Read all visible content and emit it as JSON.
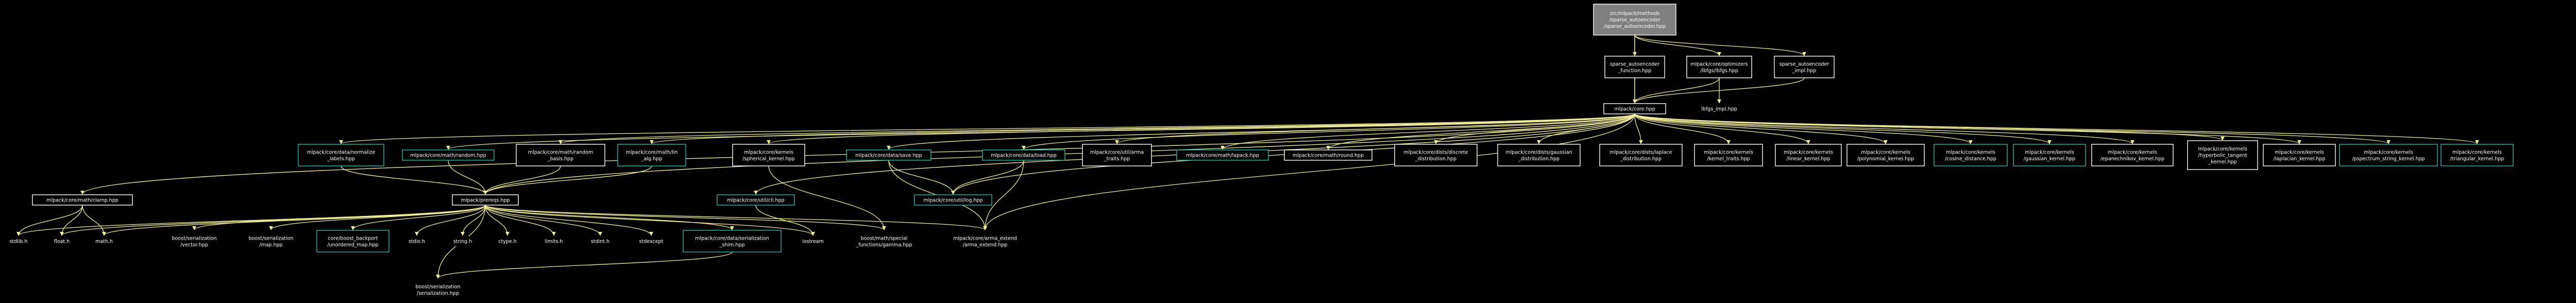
{
  "colors": {
    "background": "#000000",
    "text": "#ffffff",
    "edge": "#f3ef9e",
    "border_default": "#ffffff",
    "border_linked": "#2cb7b0",
    "root_fill": "#7f7f7f",
    "node_fill": "#000000"
  },
  "nodes": [
    {
      "id": "root",
      "lines": [
        "src/mlpack/methods",
        "/sparse_autoencoder",
        "/sparse_autoencoder.hpp"
      ],
      "style": "root"
    },
    {
      "id": "sa_function",
      "lines": [
        "sparse_autoencoder",
        "_function.hpp"
      ],
      "style": "default"
    },
    {
      "id": "lbfgs",
      "lines": [
        "mlpack/core/optimizers",
        "/lbfgs/lbfgs.hpp"
      ],
      "style": "default"
    },
    {
      "id": "sa_impl",
      "lines": [
        "sparse_autoencoder",
        "_impl.hpp"
      ],
      "style": "default"
    },
    {
      "id": "core",
      "lines": [
        "mlpack/core.hpp"
      ],
      "style": "default"
    },
    {
      "id": "lbfgs_impl",
      "lines": [
        "lbfgs_impl.hpp"
      ],
      "style": "plain"
    },
    {
      "id": "normalize",
      "lines": [
        "mlpack/core/data/normalize",
        "_labels.hpp"
      ],
      "style": "linked"
    },
    {
      "id": "random",
      "lines": [
        "mlpack/core/math/random.hpp"
      ],
      "style": "linked"
    },
    {
      "id": "random_basis",
      "lines": [
        "mlpack/core/math/random",
        "_basis.hpp"
      ],
      "style": "default"
    },
    {
      "id": "lin_alg",
      "lines": [
        "mlpack/core/math/lin",
        "_alg.hpp"
      ],
      "style": "linked"
    },
    {
      "id": "spherical",
      "lines": [
        "mlpack/core/kernels",
        "/spherical_kernel.hpp"
      ],
      "style": "default"
    },
    {
      "id": "save",
      "lines": [
        "mlpack/core/data/save.hpp"
      ],
      "style": "linked"
    },
    {
      "id": "load",
      "lines": [
        "mlpack/core/data/load.hpp"
      ],
      "style": "linked"
    },
    {
      "id": "arma_traits",
      "lines": [
        "mlpack/core/util/arma",
        "_traits.hpp"
      ],
      "style": "default"
    },
    {
      "id": "lapack",
      "lines": [
        "mlpack/core/math/lapack.hpp"
      ],
      "style": "linked"
    },
    {
      "id": "round",
      "lines": [
        "mlpack/core/math/round.hpp"
      ],
      "style": "default"
    },
    {
      "id": "discrete",
      "lines": [
        "mlpack/core/dists/discrete",
        "_distribution.hpp"
      ],
      "style": "default"
    },
    {
      "id": "gaussian_dist",
      "lines": [
        "mlpack/core/dists/gaussian",
        "_distribution.hpp"
      ],
      "style": "default"
    },
    {
      "id": "laplace_dist",
      "lines": [
        "mlpack/core/dists/laplace",
        "_distribution.hpp"
      ],
      "style": "default"
    },
    {
      "id": "kernel_traits",
      "lines": [
        "mlpack/core/kernels",
        "/kernel_traits.hpp"
      ],
      "style": "default"
    },
    {
      "id": "linear_kernel",
      "lines": [
        "mlpack/core/kernels",
        "/linear_kernel.hpp"
      ],
      "style": "default"
    },
    {
      "id": "polynomial_kernel",
      "lines": [
        "mlpack/core/kernels",
        "/polynomial_kernel.hpp"
      ],
      "style": "default"
    },
    {
      "id": "cosine",
      "lines": [
        "mlpack/core/kernels",
        "/cosine_distance.hpp"
      ],
      "style": "linked"
    },
    {
      "id": "gaussian_kernel",
      "lines": [
        "mlpack/core/kernels",
        "/gaussian_kernel.hpp"
      ],
      "style": "linked"
    },
    {
      "id": "epanechnikov",
      "lines": [
        "mlpack/core/kernels",
        "/epanechnikov_kernel.hpp"
      ],
      "style": "default"
    },
    {
      "id": "hyperbolic",
      "lines": [
        "mlpack/core/kernels",
        "/hyperbolic_tangent",
        "_kernel.hpp"
      ],
      "style": "default"
    },
    {
      "id": "laplacian",
      "lines": [
        "mlpack/core/kernels",
        "/laplacian_kernel.hpp"
      ],
      "style": "default"
    },
    {
      "id": "pspectrum",
      "lines": [
        "mlpack/core/kernels",
        "/pspectrum_string_kernel.hpp"
      ],
      "style": "linked"
    },
    {
      "id": "triangular",
      "lines": [
        "mlpack/core/kernels",
        "/triangular_kernel.hpp"
      ],
      "style": "linked"
    },
    {
      "id": "clamp",
      "lines": [
        "mlpack/core/math/clamp.hpp"
      ],
      "style": "default"
    },
    {
      "id": "prereqs",
      "lines": [
        "mlpack/prereqs.hpp"
      ],
      "style": "default"
    },
    {
      "id": "cli",
      "lines": [
        "mlpack/core/util/cli.hpp"
      ],
      "style": "linked"
    },
    {
      "id": "log",
      "lines": [
        "mlpack/core/util/log.hpp"
      ],
      "style": "linked"
    },
    {
      "id": "stdlib",
      "lines": [
        "stdlib.h"
      ],
      "style": "plain"
    },
    {
      "id": "float",
      "lines": [
        "float.h"
      ],
      "style": "plain"
    },
    {
      "id": "math",
      "lines": [
        "math.h"
      ],
      "style": "plain"
    },
    {
      "id": "vector",
      "lines": [
        "boost/serialization",
        "/vector.hpp"
      ],
      "style": "plain"
    },
    {
      "id": "map",
      "lines": [
        "boost/serialization",
        "/map.hpp"
      ],
      "style": "plain"
    },
    {
      "id": "unordered",
      "lines": [
        "core/boost_backport",
        "/unordered_map.hpp"
      ],
      "style": "linked"
    },
    {
      "id": "stdio",
      "lines": [
        "stdio.h"
      ],
      "style": "plain"
    },
    {
      "id": "string",
      "lines": [
        "string.h"
      ],
      "style": "plain"
    },
    {
      "id": "ctype",
      "lines": [
        "ctype.h"
      ],
      "style": "plain"
    },
    {
      "id": "limits",
      "lines": [
        "limits.h"
      ],
      "style": "plain"
    },
    {
      "id": "stdint",
      "lines": [
        "stdint.h"
      ],
      "style": "plain"
    },
    {
      "id": "stdexcept",
      "lines": [
        "stdexcept"
      ],
      "style": "plain"
    },
    {
      "id": "shim",
      "lines": [
        "mlpack/core/data/serialization",
        "_shim.hpp"
      ],
      "style": "linked"
    },
    {
      "id": "iostream",
      "lines": [
        "iostream"
      ],
      "style": "plain"
    },
    {
      "id": "gamma",
      "lines": [
        "boost/math/special",
        "_functions/gamma.hpp"
      ],
      "style": "plain"
    },
    {
      "id": "arma_extend",
      "lines": [
        "mlpack/core/arma_extend",
        "/arma_extend.hpp"
      ],
      "style": "plain"
    },
    {
      "id": "serialization",
      "lines": [
        "boost/serialization",
        "/serialization.hpp"
      ],
      "style": "plain"
    }
  ]
}
